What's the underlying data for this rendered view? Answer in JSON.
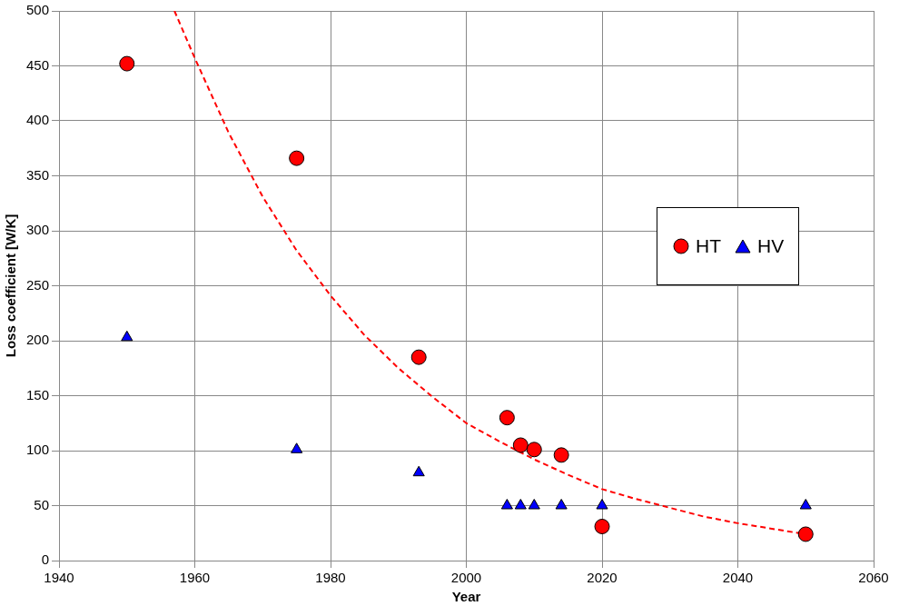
{
  "chart_data": {
    "type": "scatter",
    "xlabel": "Year",
    "ylabel": "Loss coefficient [W/K]",
    "xlim": [
      1940,
      2060
    ],
    "xticks": [
      1940,
      1960,
      1980,
      2000,
      2020,
      2040,
      2060
    ],
    "ylim": [
      0,
      500
    ],
    "yticks": [
      0,
      50,
      100,
      150,
      200,
      250,
      300,
      350,
      400,
      450,
      500
    ],
    "grid": true,
    "legend": "right",
    "series": [
      {
        "name": "HT",
        "color": "#ff0000",
        "marker": "circle",
        "x": [
          1950,
          1975,
          1993,
          2006,
          2008,
          2010,
          2014,
          2020,
          2050
        ],
        "values": [
          452,
          366,
          185,
          130,
          105,
          101,
          96,
          31,
          24
        ]
      },
      {
        "name": "HV",
        "color": "#0000ff",
        "marker": "triangle",
        "x": [
          1950,
          1975,
          1993,
          2006,
          2008,
          2010,
          2014,
          2020,
          2050
        ],
        "values": [
          203,
          101,
          80,
          50,
          50,
          50,
          50,
          50,
          50
        ]
      },
      {
        "type": "line",
        "color": "#ff0000",
        "line_style": "dashed",
        "marker": "none",
        "x": [
          1957,
          1960,
          1965,
          1970,
          1975,
          1980,
          1985,
          1990,
          1995,
          2000,
          2005,
          2010,
          2015,
          2020,
          2025,
          2030,
          2035,
          2040,
          2045,
          2050
        ],
        "values": [
          500,
          457,
          389,
          331,
          282,
          241,
          205,
          175,
          149,
          125,
          108,
          92,
          78,
          65,
          56,
          48,
          40,
          34,
          29,
          24
        ]
      }
    ]
  }
}
